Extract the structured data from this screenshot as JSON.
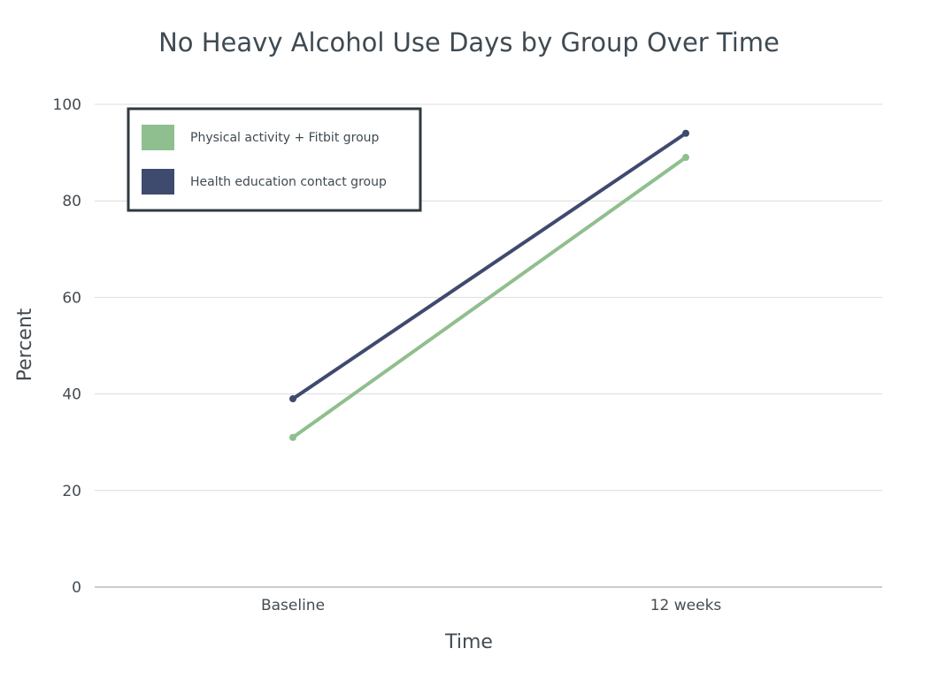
{
  "chart_data": {
    "type": "line",
    "title": "No Heavy Alcohol Use Days by Group Over Time",
    "xlabel": "Time",
    "ylabel": "Percent",
    "categories": [
      "Baseline",
      "12 weeks"
    ],
    "ylim": [
      0,
      100
    ],
    "yticks": [
      0,
      20,
      40,
      60,
      80,
      100
    ],
    "grid": true,
    "legend_position": "top-left",
    "series": [
      {
        "name": "Physical activity + Fitbit group",
        "values": [
          31,
          89
        ],
        "color": "#8fbf8e"
      },
      {
        "name": "Health education contact group",
        "values": [
          39,
          94
        ],
        "color": "#3e4a6e"
      }
    ]
  }
}
